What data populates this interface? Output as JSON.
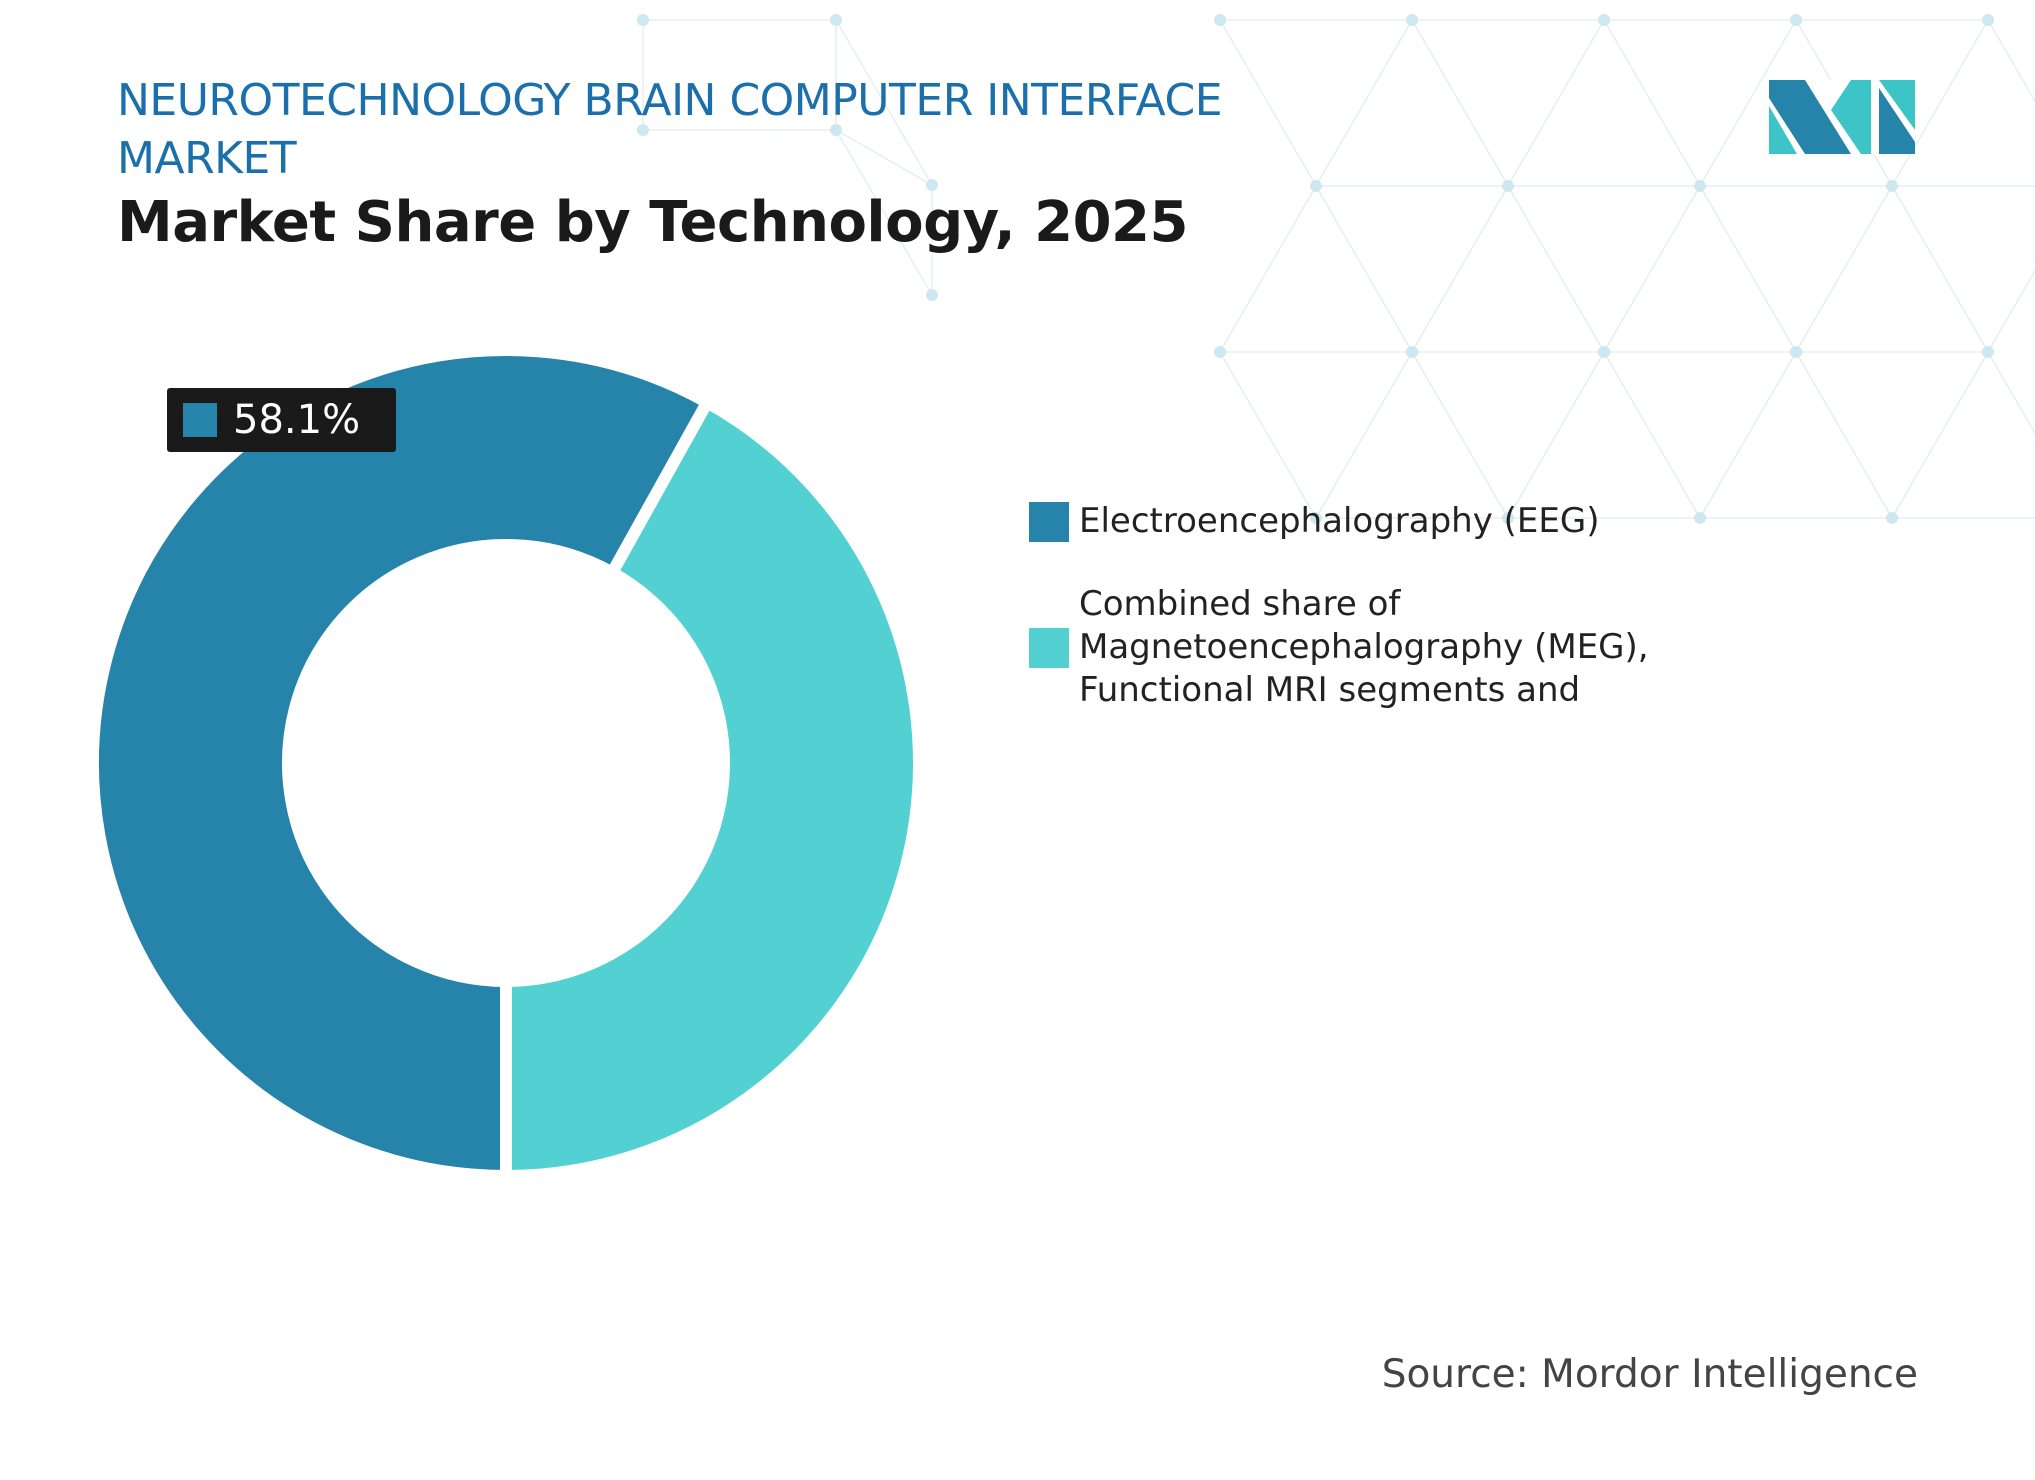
{
  "header": {
    "title": "NEUROTECHNOLOGY BRAIN COMPUTER INTERFACE MARKET",
    "subtitle": "Market Share by Technology, 2025"
  },
  "chart_data": {
    "type": "donut",
    "title": "Market Share by Technology, 2025",
    "series": [
      {
        "name": "Electroencephalography (EEG)",
        "value": 58.1,
        "color": "#2683a9",
        "label": "58.1%"
      },
      {
        "name": "Combined share of Magnetoencephalography (MEG), Functional MRI segments and",
        "value": 41.9,
        "color": "#52d0d2"
      }
    ],
    "legend_position": "right"
  },
  "source": "Source: Mordor Intelligence",
  "logo": {
    "text": "MI",
    "colors": [
      "#2683a9",
      "#3cc4c6"
    ]
  }
}
